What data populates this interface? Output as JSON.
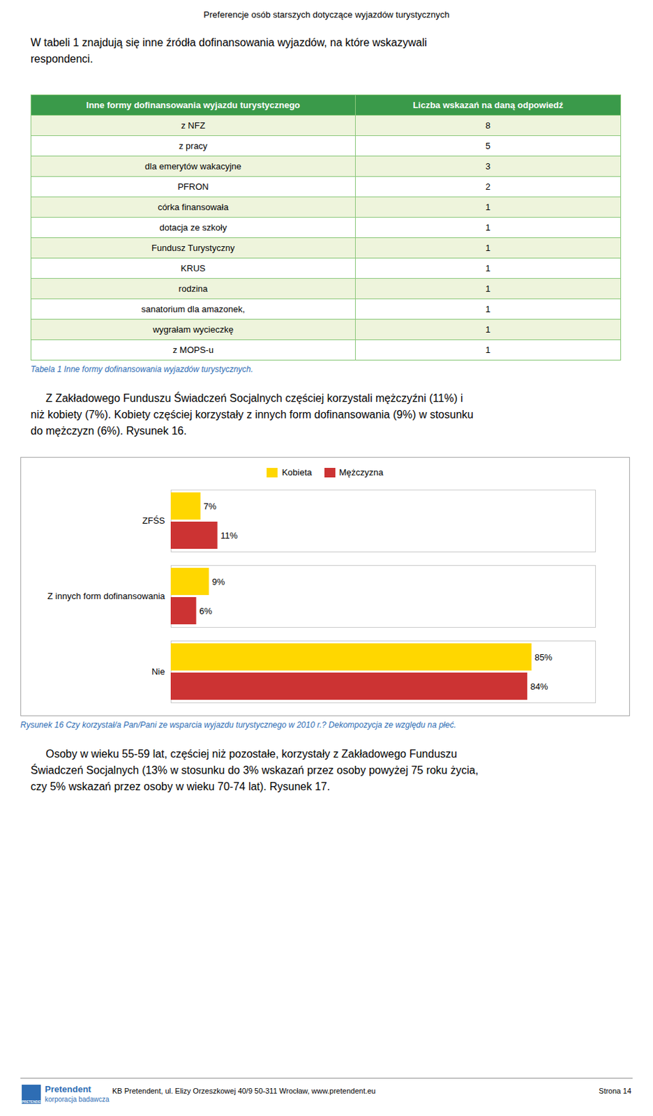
{
  "page_title": "Preferencje osób starszych dotyczące wyjazdów turystycznych",
  "intro": [
    "W tabeli 1 znajdują się inne źródła dofinansowania wyjazdów, na które wskazywali",
    "respondenci."
  ],
  "table": {
    "header": [
      "Inne formy dofinansowania wyjazdu turystycznego",
      "Liczba wskazań na daną odpowiedź"
    ],
    "rows": [
      [
        "z NFZ",
        "8"
      ],
      [
        "z pracy",
        "5"
      ],
      [
        "dla emerytów wakacyjne",
        "3"
      ],
      [
        "PFRON",
        "2"
      ],
      [
        "córka finansowała",
        "1"
      ],
      [
        "dotacja ze szkoły",
        "1"
      ],
      [
        "Fundusz Turystyczny",
        "1"
      ],
      [
        "KRUS",
        "1"
      ],
      [
        "rodzina",
        "1"
      ],
      [
        "sanatorium dla amazonek,",
        "1"
      ],
      [
        "wygrałam wycieczkę",
        "1"
      ],
      [
        "z MOPS-u",
        "1"
      ]
    ],
    "caption": "Tabela 1 Inne formy dofinansowania wyjazdów turystycznych.",
    "header_color": "#3A9A4A",
    "row_color_odd": "#EEF4DC",
    "row_color_even": "#FFFFFF",
    "border_color": "#8BC87A",
    "caption_color": "#2E6DB4"
  },
  "paragraph": [
    "     Z Zakładowego Funduszu Świadczeń Socjalnych częściej korzystali mężczyźni (11%) i",
    "niż kobiety (7%). Kobiety częściej korzystały z innych form dofinansowania (9%) w stosunku",
    "do mężczyzn (6%). Rysunek 16."
  ],
  "chart_data": {
    "type": "bar",
    "orientation": "horizontal",
    "categories": [
      "ZFŚS",
      "Z innych form dofinansowania",
      "Nie"
    ],
    "series": [
      {
        "name": "Kobieta",
        "color": "#FFD700",
        "values": [
          7,
          9,
          85
        ],
        "value_labels": [
          "7%",
          "9%",
          "85%"
        ]
      },
      {
        "name": "Mężczyzna",
        "color": "#CC3333",
        "values": [
          11,
          6,
          84
        ],
        "value_labels": [
          "11%",
          "6%",
          "84%"
        ]
      }
    ],
    "xlim": [
      0,
      100
    ],
    "tick_labels": "y",
    "data_labels": true,
    "legend": "top",
    "caption": "Rysunek 16 Czy korzystał/a Pan/Pani ze wsparcia wyjazdu turystycznego w 2010 r.? Dekompozycja ze względu na płeć.",
    "caption_color": "#2E6DB4"
  },
  "bottom_paragraph": [
    "     Osoby w wieku 55-59 lat, częściej niż pozostałe, korzystały z Zakładowego Funduszu",
    "Świadczeń Socjalnych (13% w stosunku do 3% wskazań przez osoby powyżej 75 roku życia,",
    "czy 5% wskazań przez osoby w wieku 70-74 lat). Rysunek 17."
  ],
  "footer": {
    "text": "KB Pretendent, ul. Elizy Orzeszkowej 40/9 50-311 Wrocław, www.pretendent.eu",
    "page": "Strona 14",
    "logo_mark": "PRETENDENT",
    "logo_title": "Pretendent",
    "logo_subtitle": "korporacja badawcza"
  }
}
